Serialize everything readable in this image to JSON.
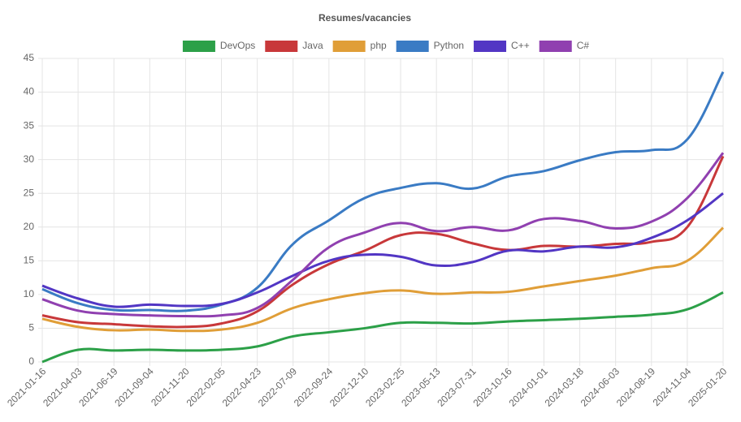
{
  "chart_data": {
    "type": "line",
    "title": "Resumes/vacancies",
    "categories": [
      "2021-01-16",
      "2021-04-03",
      "2021-06-19",
      "2021-09-04",
      "2021-11-20",
      "2022-02-05",
      "2022-04-23",
      "2022-07-09",
      "2022-09-24",
      "2022-12-10",
      "2023-02-25",
      "2023-05-13",
      "2023-07-31",
      "2023-10-16",
      "2024-01-01",
      "2024-03-18",
      "2024-06-03",
      "2024-08-19",
      "2024-11-04",
      "2025-01-20"
    ],
    "series": [
      {
        "name": "DevOps",
        "color": "#2ca048",
        "values": [
          0,
          1.8,
          1.7,
          1.8,
          1.7,
          1.8,
          2.3,
          3.8,
          4.4,
          5.0,
          5.8,
          5.8,
          5.7,
          6.0,
          6.2,
          6.4,
          6.7,
          7.0,
          7.8,
          10.3
        ]
      },
      {
        "name": "Java",
        "color": "#c8383a",
        "values": [
          6.9,
          5.9,
          5.6,
          5.3,
          5.2,
          5.7,
          7.5,
          11.5,
          14.5,
          16.5,
          18.8,
          19.0,
          17.6,
          16.6,
          17.2,
          17.1,
          17.5,
          17.8,
          20.0,
          30.5
        ]
      },
      {
        "name": "php",
        "color": "#e09e38",
        "values": [
          6.4,
          5.2,
          4.7,
          4.8,
          4.6,
          4.8,
          5.8,
          8.0,
          9.3,
          10.2,
          10.6,
          10.1,
          10.3,
          10.4,
          11.2,
          12.0,
          12.8,
          13.9,
          15.0,
          19.9
        ]
      },
      {
        "name": "Python",
        "color": "#3a7bc4",
        "values": [
          10.8,
          8.7,
          7.7,
          7.7,
          7.6,
          8.5,
          11.0,
          17.5,
          21.0,
          24.3,
          25.8,
          26.5,
          25.7,
          27.5,
          28.3,
          29.9,
          31.1,
          31.4,
          33.0,
          43.0
        ]
      },
      {
        "name": "C++",
        "color": "#5236c4",
        "values": [
          11.3,
          9.4,
          8.2,
          8.5,
          8.3,
          8.6,
          10.3,
          12.8,
          15.0,
          15.9,
          15.6,
          14.3,
          14.8,
          16.5,
          16.4,
          17.1,
          17.0,
          18.4,
          21.0,
          25.0
        ]
      },
      {
        "name": "C#",
        "color": "#9040b0",
        "values": [
          9.3,
          7.6,
          7.1,
          6.9,
          6.8,
          6.9,
          8.0,
          12.2,
          17.0,
          19.2,
          20.6,
          19.4,
          20.0,
          19.5,
          21.2,
          20.9,
          19.8,
          20.8,
          24.3,
          31.0
        ]
      }
    ],
    "ylim": [
      0,
      45
    ],
    "yticks": [
      0,
      5,
      10,
      15,
      20,
      25,
      30,
      35,
      40,
      45
    ],
    "grid": true,
    "legend": "top"
  }
}
